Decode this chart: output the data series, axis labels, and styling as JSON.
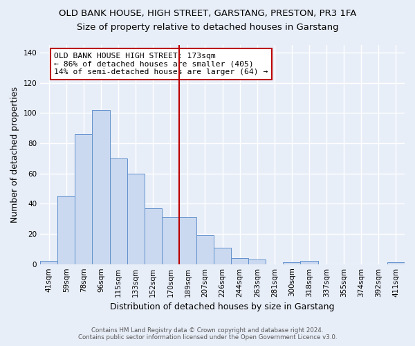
{
  "title": "OLD BANK HOUSE, HIGH STREET, GARSTANG, PRESTON, PR3 1FA",
  "subtitle": "Size of property relative to detached houses in Garstang",
  "xlabel": "Distribution of detached houses by size in Garstang",
  "ylabel": "Number of detached properties",
  "bar_labels": [
    "41sqm",
    "59sqm",
    "78sqm",
    "96sqm",
    "115sqm",
    "133sqm",
    "152sqm",
    "170sqm",
    "189sqm",
    "207sqm",
    "226sqm",
    "244sqm",
    "263sqm",
    "281sqm",
    "300sqm",
    "318sqm",
    "337sqm",
    "355sqm",
    "374sqm",
    "392sqm",
    "411sqm"
  ],
  "bar_values": [
    2,
    45,
    86,
    102,
    70,
    60,
    37,
    31,
    31,
    19,
    11,
    4,
    3,
    0,
    1,
    2,
    0,
    0,
    0,
    0,
    1
  ],
  "bar_color": "#cad9f0",
  "bar_edge_color": "#6090cc",
  "background_color": "#e8eef8",
  "grid_color": "#ffffff",
  "vline_x": 7.5,
  "vline_color": "#bb0000",
  "annotation_text": "OLD BANK HOUSE HIGH STREET: 173sqm\n← 86% of detached houses are smaller (405)\n14% of semi-detached houses are larger (64) →",
  "annotation_box_color": "#ffffff",
  "annotation_box_edge": "#bb0000",
  "footer1": "Contains HM Land Registry data © Crown copyright and database right 2024.",
  "footer2": "Contains public sector information licensed under the Open Government Licence v3.0.",
  "ylim": [
    0,
    145
  ],
  "title_fontsize": 9.5,
  "subtitle_fontsize": 9.5,
  "annotation_fontsize": 8.2,
  "tick_fontsize": 7.5,
  "ylabel_fontsize": 9,
  "xlabel_fontsize": 9
}
